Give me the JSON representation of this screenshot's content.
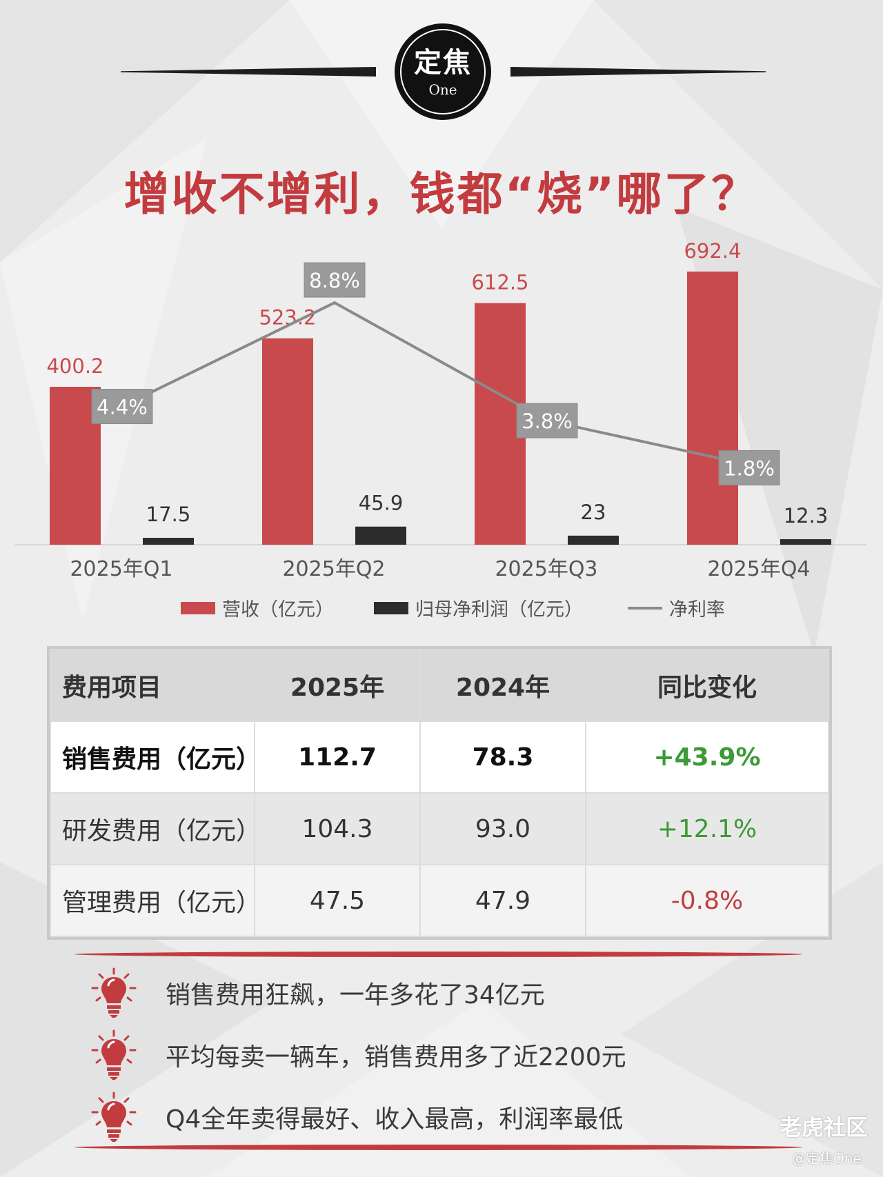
{
  "logo": {
    "main": "定焦",
    "sub": "One"
  },
  "title": "增收不增利，钱都“烧”哪了？",
  "colors": {
    "revenue": "#c94a4d",
    "profit": "#2c2c2c",
    "margin": "#8a8a8a",
    "accent": "#c23c3f",
    "positive": "#3c9a37"
  },
  "chart_data": {
    "type": "bar",
    "categories": [
      "2025年Q1",
      "2025年Q2",
      "2025年Q3",
      "2025年Q4"
    ],
    "series": [
      {
        "name": "营收（亿元）",
        "type": "bar",
        "values": [
          400.2,
          523.2,
          612.5,
          692.4
        ]
      },
      {
        "name": "归母净利润（亿元）",
        "type": "bar",
        "values": [
          17.5,
          45.9,
          23,
          12.3
        ]
      },
      {
        "name": "净利率",
        "type": "line",
        "values": [
          4.4,
          8.8,
          3.8,
          1.8
        ],
        "labels": [
          "4.4%",
          "8.8%",
          "3.8%",
          "1.8%"
        ]
      }
    ],
    "ylim": [
      0,
      720
    ],
    "margin_ylim": [
      0,
      10
    ],
    "grid": false,
    "legend_position": "bottom"
  },
  "table": {
    "headers": [
      "费用项目",
      "2025年",
      "2024年",
      "同比变化"
    ],
    "rows": [
      {
        "item": "销售费用（亿元）",
        "y2025": "112.7",
        "y2024": "78.3",
        "change": "+43.9%"
      },
      {
        "item": "研发费用（亿元）",
        "y2025": "104.3",
        "y2024": "93.0",
        "change": "+12.1%"
      },
      {
        "item": "管理费用（亿元）",
        "y2025": "47.5",
        "y2024": "47.9",
        "change": "-0.8%"
      }
    ]
  },
  "bullets": [
    "销售费用狂飙，一年多花了34亿元",
    "平均每卖一辆车，销售费用多了近2200元",
    "Q4全年卖得最好、收入最高，利润率最低"
  ],
  "watermark": {
    "brand": "老虎社区",
    "handle": "@定焦One"
  }
}
